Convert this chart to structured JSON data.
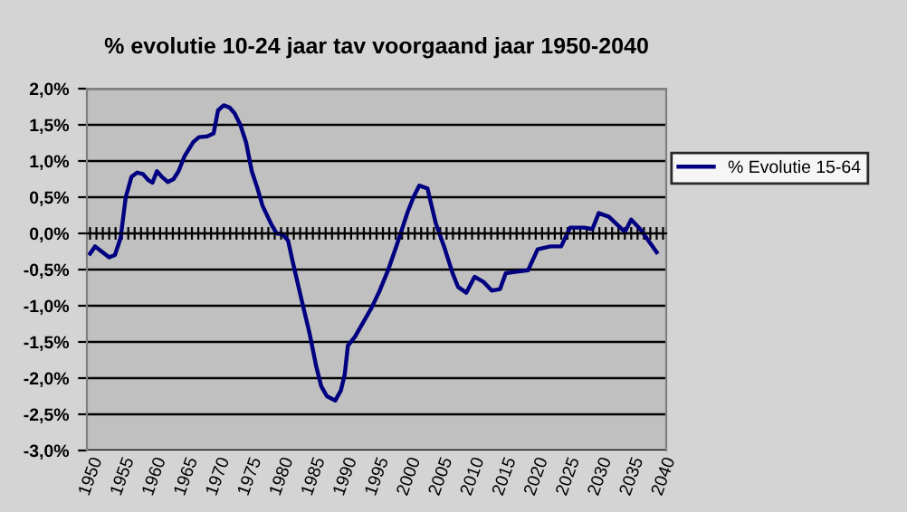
{
  "chart_data": {
    "type": "line",
    "title": "% evolutie 10-24 jaar tav voorgaand jaar 1950-2040",
    "series": [
      {
        "name": "% Evolutie 15-64",
        "color": "#000080",
        "x": [
          1950.0,
          1950.8,
          1953.0,
          1953.9,
          1954.8,
          1955.6,
          1956.5,
          1957.4,
          1958.3,
          1959.1,
          1959.8,
          1960.5,
          1961.3,
          1962.2,
          1963.1,
          1963.9,
          1964.8,
          1966.2,
          1967.1,
          1968.4,
          1969.4,
          1970.1,
          1971.0,
          1971.9,
          1972.7,
          1973.6,
          1974.5,
          1975.4,
          1976.3,
          1977.1,
          1978.5,
          1979.3,
          1980.2,
          1981.1,
          1981.9,
          1983.2,
          1984.5,
          1985.5,
          1986.3,
          1987.2,
          1988.5,
          1989.4,
          1990.0,
          1990.5,
          1991.6,
          1992.9,
          1994.2,
          1995.5,
          1996.8,
          1998.1,
          1999.0,
          1999.9,
          2000.8,
          2001.7,
          2003.0,
          2004.3,
          2005.6,
          2006.9,
          2007.8,
          2009.1,
          2010.4,
          2011.8,
          2013.1,
          2014.4,
          2015.3,
          2017.0,
          2018.8,
          2020.3,
          2022.3,
          2024.0,
          2025.4,
          2027.6,
          2028.9,
          2029.9,
          2031.5,
          2032.8,
          2034.0,
          2035.0,
          2036.4,
          2037.7,
          2039.0
        ],
        "values": [
          -0.28,
          -0.18,
          -0.33,
          -0.3,
          -0.06,
          0.5,
          0.78,
          0.84,
          0.82,
          0.74,
          0.7,
          0.86,
          0.78,
          0.71,
          0.75,
          0.86,
          1.06,
          1.26,
          1.33,
          1.34,
          1.38,
          1.7,
          1.77,
          1.74,
          1.66,
          1.5,
          1.26,
          0.86,
          0.62,
          0.38,
          0.12,
          0.0,
          -0.01,
          -0.1,
          -0.42,
          -0.91,
          -1.39,
          -1.83,
          -2.11,
          -2.25,
          -2.31,
          -2.17,
          -1.95,
          -1.55,
          -1.43,
          -1.23,
          -1.03,
          -0.79,
          -0.51,
          -0.18,
          0.06,
          0.3,
          0.5,
          0.66,
          0.62,
          0.14,
          -0.18,
          -0.54,
          -0.74,
          -0.82,
          -0.6,
          -0.67,
          -0.79,
          -0.77,
          -0.55,
          -0.53,
          -0.51,
          -0.22,
          -0.18,
          -0.18,
          0.08,
          0.08,
          0.06,
          0.28,
          0.23,
          0.12,
          0.02,
          0.19,
          0.06,
          -0.1,
          -0.26
        ]
      }
    ],
    "xlim": [
      1949.5,
      2040.5
    ],
    "xticks": [
      1950,
      {
        "value": 1951,
        "label": null
      },
      {
        "value": 1952,
        "label": null
      },
      {
        "value": 1953,
        "label": null
      },
      {
        "value": 1954,
        "label": null
      },
      1955,
      {
        "value": 1956,
        "label": null
      },
      {
        "value": 1957,
        "label": null
      },
      {
        "value": 1958,
        "label": null
      },
      {
        "value": 1959,
        "label": null
      },
      1960,
      {
        "value": 1961,
        "label": null
      },
      {
        "value": 1962,
        "label": null
      },
      {
        "value": 1963,
        "label": null
      },
      {
        "value": 1964,
        "label": null
      },
      1965,
      {
        "value": 1966,
        "label": null
      },
      {
        "value": 1967,
        "label": null
      },
      {
        "value": 1968,
        "label": null
      },
      {
        "value": 1969,
        "label": null
      },
      1970,
      {
        "value": 1971,
        "label": null
      },
      {
        "value": 1972,
        "label": null
      },
      {
        "value": 1973,
        "label": null
      },
      {
        "value": 1974,
        "label": null
      },
      1975,
      {
        "value": 1976,
        "label": null
      },
      {
        "value": 1977,
        "label": null
      },
      {
        "value": 1978,
        "label": null
      },
      {
        "value": 1979,
        "label": null
      },
      1980,
      {
        "value": 1981,
        "label": null
      },
      {
        "value": 1982,
        "label": null
      },
      {
        "value": 1983,
        "label": null
      },
      {
        "value": 1984,
        "label": null
      },
      1985,
      {
        "value": 1986,
        "label": null
      },
      {
        "value": 1987,
        "label": null
      },
      {
        "value": 1988,
        "label": null
      },
      {
        "value": 1989,
        "label": null
      },
      1990,
      {
        "value": 1991,
        "label": null
      },
      {
        "value": 1992,
        "label": null
      },
      {
        "value": 1993,
        "label": null
      },
      {
        "value": 1994,
        "label": null
      },
      1995,
      {
        "value": 1996,
        "label": null
      },
      {
        "value": 1997,
        "label": null
      },
      {
        "value": 1998,
        "label": null
      },
      {
        "value": 1999,
        "label": null
      },
      2000,
      {
        "value": 2001,
        "label": null
      },
      {
        "value": 2002,
        "label": null
      },
      {
        "value": 2003,
        "label": null
      },
      {
        "value": 2004,
        "label": null
      },
      2005,
      {
        "value": 2006,
        "label": null
      },
      {
        "value": 2007,
        "label": null
      },
      {
        "value": 2008,
        "label": null
      },
      {
        "value": 2009,
        "label": null
      },
      2010,
      {
        "value": 2011,
        "label": null
      },
      {
        "value": 2012,
        "label": null
      },
      {
        "value": 2013,
        "label": null
      },
      {
        "value": 2014,
        "label": null
      },
      2015,
      {
        "value": 2016,
        "label": null
      },
      {
        "value": 2017,
        "label": null
      },
      {
        "value": 2018,
        "label": null
      },
      {
        "value": 2019,
        "label": null
      },
      2020,
      {
        "value": 2021,
        "label": null
      },
      {
        "value": 2022,
        "label": null
      },
      {
        "value": 2023,
        "label": null
      },
      {
        "value": 2024,
        "label": null
      },
      2025,
      {
        "value": 2026,
        "label": null
      },
      {
        "value": 2027,
        "label": null
      },
      {
        "value": 2028,
        "label": null
      },
      {
        "value": 2029,
        "label": null
      },
      2030,
      {
        "value": 2031,
        "label": null
      },
      {
        "value": 2032,
        "label": null
      },
      {
        "value": 2033,
        "label": null
      },
      {
        "value": 2034,
        "label": null
      },
      2035,
      {
        "value": 2036,
        "label": null
      },
      {
        "value": 2037,
        "label": null
      },
      {
        "value": 2038,
        "label": null
      },
      {
        "value": 2039,
        "label": null
      },
      2040
    ],
    "ylim": [
      -3.0,
      2.0
    ],
    "yticks": [
      {
        "value": -3.0,
        "label": "-3,0%"
      },
      {
        "value": -2.5,
        "label": "-2,5%"
      },
      {
        "value": -2.0,
        "label": "-2,0%"
      },
      {
        "value": -1.5,
        "label": "-1,5%"
      },
      {
        "value": -1.0,
        "label": "-1,0%"
      },
      {
        "value": -0.5,
        "label": "-0,5%"
      },
      {
        "value": 0.0,
        "label": "0,0%"
      },
      {
        "value": 0.5,
        "label": "0,5%"
      },
      {
        "value": 1.0,
        "label": "1,0%"
      },
      {
        "value": 1.5,
        "label": "1,5%"
      },
      {
        "value": 2.0,
        "label": "2,0%"
      }
    ],
    "grid": "y",
    "legend": "right",
    "marker": "none",
    "line_style": "solid"
  }
}
